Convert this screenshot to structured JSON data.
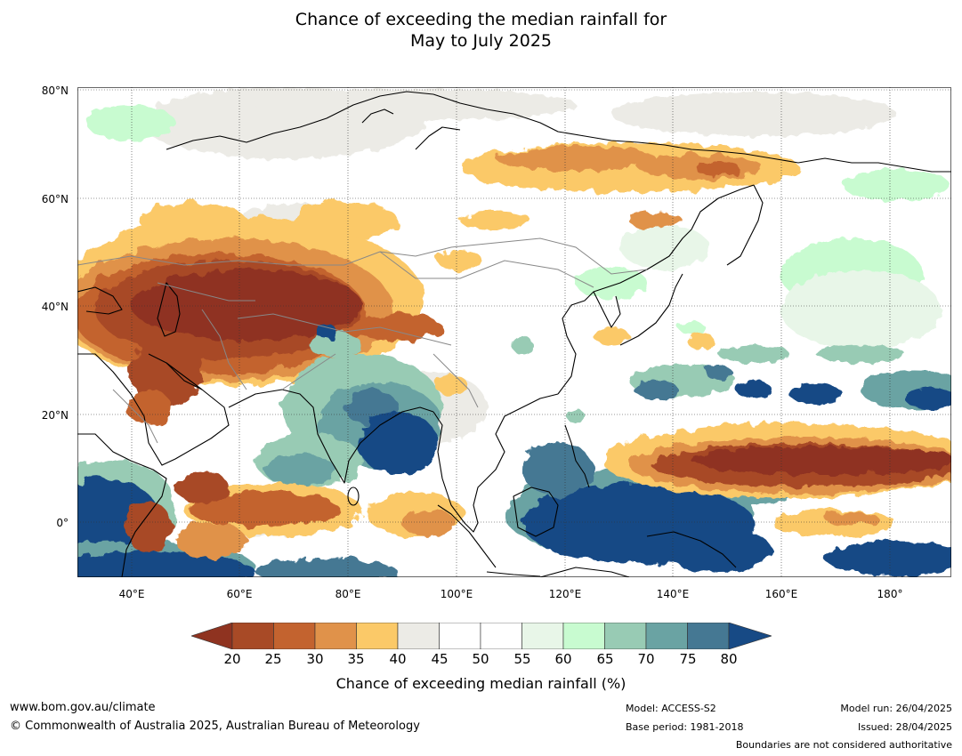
{
  "title_line1": "Chance of exceeding the median rainfall for",
  "title_line2": "May to July 2025",
  "lat_labels": [
    "80°N",
    "60°N",
    "40°N",
    "20°N",
    "0°"
  ],
  "lon_labels": [
    "40°E",
    "60°E",
    "80°E",
    "100°E",
    "120°E",
    "140°E",
    "160°E",
    "180°"
  ],
  "colorbar": {
    "ticks": [
      "20",
      "25",
      "30",
      "35",
      "40",
      "45",
      "50",
      "55",
      "60",
      "65",
      "70",
      "75",
      "80"
    ],
    "colors": {
      "below20": "#8f3320",
      "20-25": "#a84a26",
      "25-30": "#c3632f",
      "30-35": "#e0924a",
      "35-40": "#fbc968",
      "40-45": "#ecebe6",
      "45-50": "#ffffff",
      "50-55": "#ffffff",
      "55-60": "#e8f6e8",
      "60-65": "#c8fbd0",
      "65-70": "#98cbb4",
      "70-75": "#6aa3a3",
      "75-80": "#457893",
      "above80": "#174a85"
    },
    "label": "Chance of exceeding median rainfall (%)"
  },
  "footer": {
    "website": "www.bom.gov.au/climate",
    "copyright": "© Commonwealth of Australia 2025, Australian Bureau of Meteorology",
    "model": "Model: ACCESS-S2",
    "base_period": "Base period: 1981-2018",
    "model_run": "Model run: 26/04/2025",
    "issued": "Issued: 28/04/2025",
    "disclaimer": "Boundaries are not considered authoritative"
  }
}
